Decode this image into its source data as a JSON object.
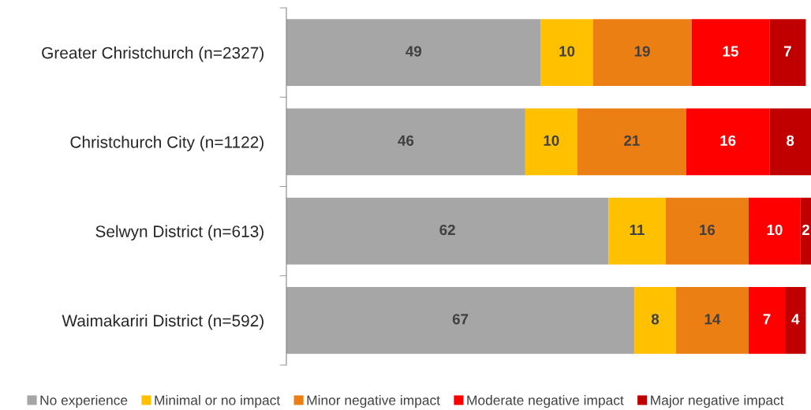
{
  "chart_data": {
    "type": "bar",
    "orientation": "horizontal",
    "stacked": true,
    "categories": [
      "Greater Christchurch (n=2327)",
      "Christchurch City (n=1122)",
      "Selwyn District (n=613)",
      "Waimakariri District (n=592)"
    ],
    "series": [
      {
        "name": "No experience",
        "color": "#a6a6a6",
        "values": [
          49,
          46,
          62,
          67
        ]
      },
      {
        "name": "Minimal or no impact",
        "color": "#ffc000",
        "values": [
          10,
          10,
          11,
          8
        ]
      },
      {
        "name": "Minor negative impact",
        "color": "#ec7f14",
        "values": [
          19,
          21,
          16,
          14
        ]
      },
      {
        "name": "Moderate negative impact",
        "color": "#ff0000",
        "values": [
          15,
          16,
          10,
          7
        ]
      },
      {
        "name": "Major negative impact",
        "color": "#c00000",
        "values": [
          7,
          8,
          2,
          4
        ]
      }
    ],
    "data_labels": true,
    "legend": "bottom",
    "grid": false
  }
}
